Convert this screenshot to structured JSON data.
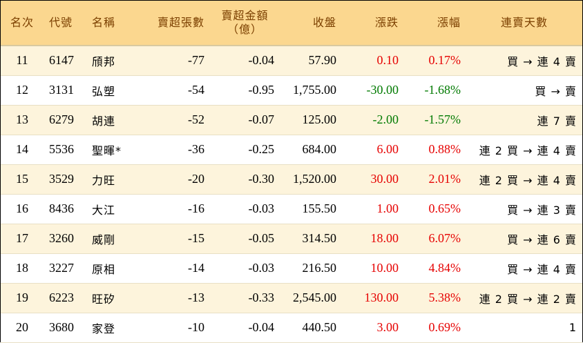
{
  "headers": {
    "rank": "名次",
    "code": "代號",
    "name": "名稱",
    "net_sell_lots": "賣超張數",
    "net_sell_amount_line1": "賣超金額",
    "net_sell_amount_line2": "（億）",
    "close": "收盤",
    "change": "漲跌",
    "change_pct": "漲幅",
    "consecutive": "連賣天數"
  },
  "rows": [
    {
      "rank": "11",
      "code": "6147",
      "name": "頎邦",
      "lots": "-77",
      "amount": "-0.04",
      "close": "57.90",
      "change": "0.10",
      "pct": "0.17%",
      "dir": "up",
      "streak": "買 → 連 4 賣"
    },
    {
      "rank": "12",
      "code": "3131",
      "name": "弘塑",
      "lots": "-54",
      "amount": "-0.95",
      "close": "1,755.00",
      "change": "-30.00",
      "pct": "-1.68%",
      "dir": "down",
      "streak": "買 → 賣"
    },
    {
      "rank": "13",
      "code": "6279",
      "name": "胡連",
      "lots": "-52",
      "amount": "-0.07",
      "close": "125.00",
      "change": "-2.00",
      "pct": "-1.57%",
      "dir": "down",
      "streak": "連 7 賣"
    },
    {
      "rank": "14",
      "code": "5536",
      "name": "聖暉*",
      "lots": "-36",
      "amount": "-0.25",
      "close": "684.00",
      "change": "6.00",
      "pct": "0.88%",
      "dir": "up",
      "streak": "連 2 買 → 連 4 賣"
    },
    {
      "rank": "15",
      "code": "3529",
      "name": "力旺",
      "lots": "-20",
      "amount": "-0.30",
      "close": "1,520.00",
      "change": "30.00",
      "pct": "2.01%",
      "dir": "up",
      "streak": "連 2 買 → 連 4 賣"
    },
    {
      "rank": "16",
      "code": "8436",
      "name": "大江",
      "lots": "-16",
      "amount": "-0.03",
      "close": "155.50",
      "change": "1.00",
      "pct": "0.65%",
      "dir": "up",
      "streak": "買 → 連 3 賣"
    },
    {
      "rank": "17",
      "code": "3260",
      "name": "威剛",
      "lots": "-15",
      "amount": "-0.05",
      "close": "314.50",
      "change": "18.00",
      "pct": "6.07%",
      "dir": "up",
      "streak": "買 → 連 6 賣"
    },
    {
      "rank": "18",
      "code": "3227",
      "name": "原相",
      "lots": "-14",
      "amount": "-0.03",
      "close": "216.50",
      "change": "10.00",
      "pct": "4.84%",
      "dir": "up",
      "streak": "買 → 連 4 賣"
    },
    {
      "rank": "19",
      "code": "6223",
      "name": "旺矽",
      "lots": "-13",
      "amount": "-0.33",
      "close": "2,545.00",
      "change": "130.00",
      "pct": "5.38%",
      "dir": "up",
      "streak": "連 2 買 → 連 2 賣"
    },
    {
      "rank": "20",
      "code": "3680",
      "name": "家登",
      "lots": "-10",
      "amount": "-0.04",
      "close": "440.50",
      "change": "3.00",
      "pct": "0.69%",
      "dir": "up",
      "streak": "1"
    }
  ],
  "colors": {
    "header_bg": "#fbd78f",
    "header_text": "#7b3f00",
    "row_alt_bg": "#fdf4dc",
    "up": "#e60000",
    "down": "#007a00"
  }
}
